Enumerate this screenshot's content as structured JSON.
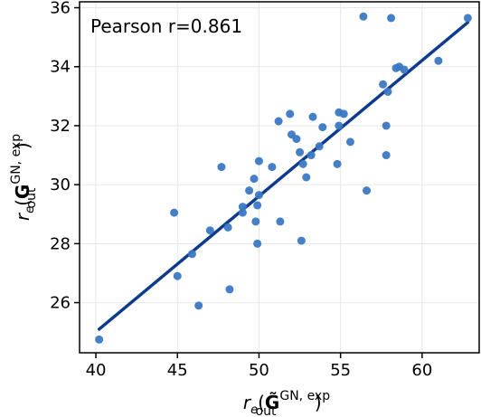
{
  "chart_data": {
    "type": "scatter",
    "title": "",
    "xlabel": "",
    "ylabel": "",
    "xlabel_parts": {
      "italic": "r",
      "sub_e": "e",
      "bold": "G̃",
      "sub": "out",
      "sup": "GN, exp"
    },
    "ylabel_parts": {
      "italic": "r",
      "sub_e": "e",
      "bold": "G",
      "sub": "out",
      "sup": "GN, exp"
    },
    "xlim": [
      39.0,
      63.5
    ],
    "ylim": [
      24.3,
      36.2
    ],
    "xticks": [
      40,
      45,
      50,
      55,
      60
    ],
    "yticks": [
      26,
      28,
      30,
      32,
      34,
      36
    ],
    "grid": true,
    "annotation": "Pearson r=0.861",
    "annotation_position": "top-left",
    "point_color": "#3a78c4",
    "line_color": "#0d3c8c",
    "fit_line": {
      "x": [
        40.2,
        62.8
      ],
      "y": [
        25.1,
        35.5
      ]
    },
    "points": [
      {
        "x": 40.2,
        "y": 24.75
      },
      {
        "x": 44.8,
        "y": 29.05
      },
      {
        "x": 45.0,
        "y": 26.9
      },
      {
        "x": 45.9,
        "y": 27.65
      },
      {
        "x": 46.3,
        "y": 25.9
      },
      {
        "x": 47.0,
        "y": 28.45
      },
      {
        "x": 47.7,
        "y": 30.6
      },
      {
        "x": 48.1,
        "y": 28.55
      },
      {
        "x": 48.2,
        "y": 26.45
      },
      {
        "x": 49.0,
        "y": 29.25
      },
      {
        "x": 49.0,
        "y": 29.05
      },
      {
        "x": 49.4,
        "y": 29.8
      },
      {
        "x": 49.7,
        "y": 30.2
      },
      {
        "x": 49.8,
        "y": 28.75
      },
      {
        "x": 49.9,
        "y": 28.0
      },
      {
        "x": 49.9,
        "y": 29.3
      },
      {
        "x": 50.0,
        "y": 29.65
      },
      {
        "x": 50.0,
        "y": 30.8
      },
      {
        "x": 50.8,
        "y": 30.6
      },
      {
        "x": 51.2,
        "y": 32.15
      },
      {
        "x": 51.3,
        "y": 28.75
      },
      {
        "x": 51.9,
        "y": 32.4
      },
      {
        "x": 52.0,
        "y": 31.7
      },
      {
        "x": 52.3,
        "y": 31.55
      },
      {
        "x": 52.5,
        "y": 31.1
      },
      {
        "x": 52.6,
        "y": 28.1
      },
      {
        "x": 52.7,
        "y": 30.7
      },
      {
        "x": 52.9,
        "y": 30.25
      },
      {
        "x": 53.2,
        "y": 31.0
      },
      {
        "x": 53.3,
        "y": 32.3
      },
      {
        "x": 53.7,
        "y": 31.3
      },
      {
        "x": 53.9,
        "y": 31.95
      },
      {
        "x": 54.8,
        "y": 30.7
      },
      {
        "x": 54.9,
        "y": 32.45
      },
      {
        "x": 54.9,
        "y": 32.0
      },
      {
        "x": 55.2,
        "y": 32.4
      },
      {
        "x": 55.6,
        "y": 31.45
      },
      {
        "x": 56.4,
        "y": 35.7
      },
      {
        "x": 56.6,
        "y": 29.8
      },
      {
        "x": 57.6,
        "y": 33.4
      },
      {
        "x": 57.8,
        "y": 32.0
      },
      {
        "x": 57.8,
        "y": 31.0
      },
      {
        "x": 57.9,
        "y": 33.15
      },
      {
        "x": 58.1,
        "y": 35.65
      },
      {
        "x": 58.4,
        "y": 33.95
      },
      {
        "x": 58.6,
        "y": 34.0
      },
      {
        "x": 58.9,
        "y": 33.9
      },
      {
        "x": 61.0,
        "y": 34.2
      },
      {
        "x": 62.8,
        "y": 35.65
      }
    ]
  }
}
